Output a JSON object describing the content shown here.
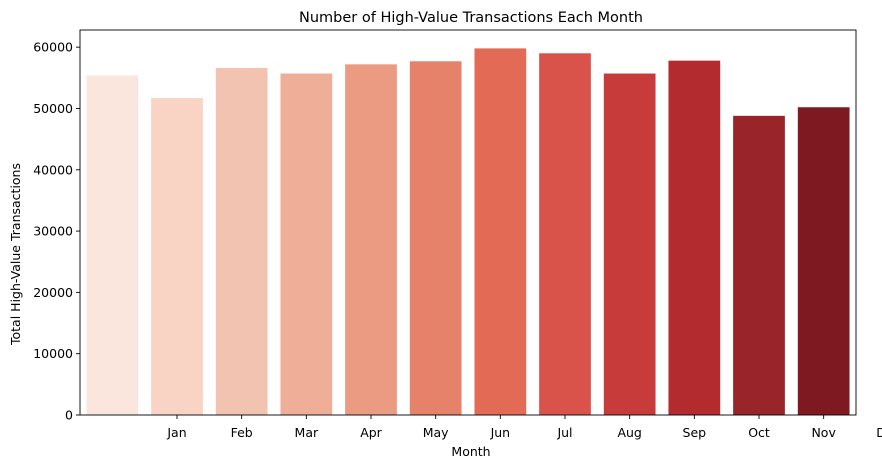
{
  "chart_data": {
    "type": "bar",
    "title": "Number of High-Value Transactions Each Month",
    "xlabel": "Month",
    "ylabel": "Total High-Value Transactions",
    "values": [
      55400,
      51700,
      56600,
      55700,
      57200,
      57700,
      59800,
      59000,
      55700,
      57800,
      48800,
      50200
    ],
    "x_tick_labels": [
      "Jan",
      "Feb",
      "Mar",
      "Apr",
      "May",
      "Jun",
      "Jul",
      "Aug",
      "Sep",
      "Oct",
      "Nov",
      "Dec"
    ],
    "y_ticks": [
      0,
      10000,
      20000,
      30000,
      40000,
      50000,
      60000
    ],
    "y_tick_labels": [
      "0",
      "10000",
      "20000",
      "30000",
      "40000",
      "50000",
      "60000"
    ],
    "ylim": [
      0,
      62800
    ],
    "grid": false,
    "colors": [
      "#fbe6dd",
      "#f9d4c4",
      "#f2c3b1",
      "#efae98",
      "#ea9b82",
      "#e7826a",
      "#e36a55",
      "#d9534a",
      "#c73c3a",
      "#b32b2f",
      "#99242a",
      "#7e1922"
    ]
  }
}
